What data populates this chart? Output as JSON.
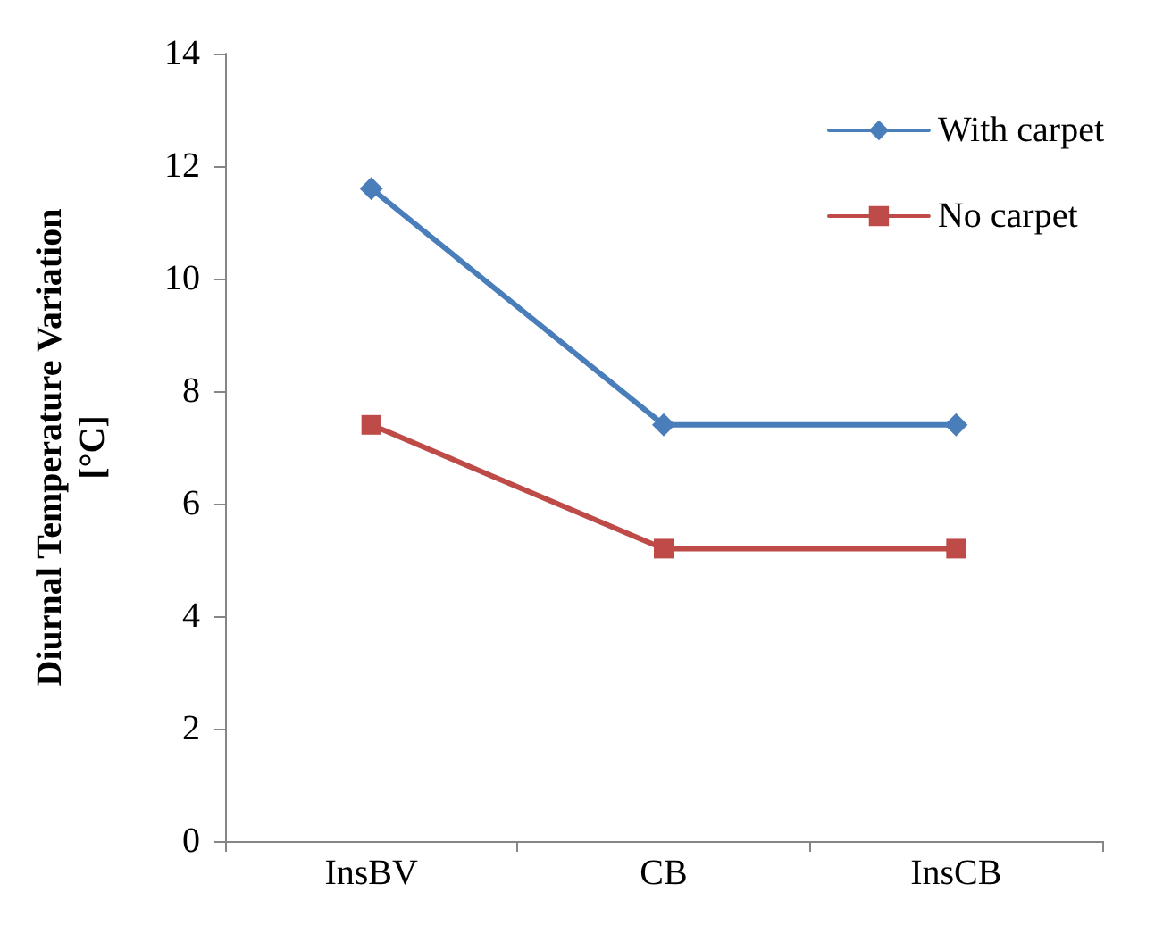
{
  "chart_data": {
    "type": "line",
    "ylabel": "Diurnal Temperature Variation\n[°C]",
    "categories": [
      "InsBV",
      "CB",
      "InsCB"
    ],
    "series": [
      {
        "name": "With carpet",
        "color": "#4a7ebb",
        "marker": "diamond",
        "values": [
          11.6,
          7.4,
          7.4
        ]
      },
      {
        "name": "No carpet",
        "color": "#be4b48",
        "marker": "square",
        "values": [
          7.4,
          5.2,
          5.2
        ]
      }
    ],
    "ylim": [
      0,
      14
    ],
    "yticks": [
      0,
      2,
      4,
      6,
      8,
      10,
      12,
      14
    ],
    "grid": false,
    "legend": "top right",
    "line_style": "solid"
  }
}
